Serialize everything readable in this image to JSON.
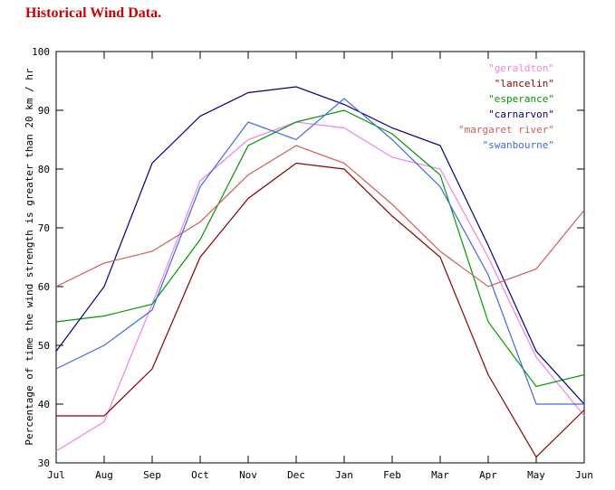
{
  "title": "Historical Wind Data.",
  "title_color": "#cc0000",
  "chart_data": {
    "type": "line",
    "title": "Historical Wind Data.",
    "xlabel": "",
    "ylabel": "Percentage of time the wind strength is greater than 20 km / hr",
    "ylim": [
      30,
      100
    ],
    "yticks": [
      30,
      40,
      50,
      60,
      70,
      80,
      90,
      100
    ],
    "grid": false,
    "legend_position": "top-right-inside",
    "categories": [
      "Jul",
      "Aug",
      "Sep",
      "Oct",
      "Nov",
      "Dec",
      "Jan",
      "Feb",
      "Mar",
      "Apr",
      "May",
      "Jun"
    ],
    "series": [
      {
        "name": "geraldton",
        "label": "\"geraldton\"",
        "color": "#ee82ee",
        "values": [
          32,
          37,
          57,
          78,
          85,
          88,
          87,
          82,
          80,
          65,
          48,
          38
        ]
      },
      {
        "name": "lancelin",
        "label": "\"lancelin\"",
        "color": "#8b0000",
        "values": [
          38,
          38,
          46,
          65,
          75,
          81,
          80,
          72,
          65,
          45,
          31,
          39
        ]
      },
      {
        "name": "esperance",
        "label": "\"esperance\"",
        "color": "#009900",
        "values": [
          54,
          55,
          57,
          68,
          84,
          88,
          90,
          86,
          79,
          54,
          43,
          45
        ]
      },
      {
        "name": "carnarvon",
        "label": "\"carnarvon\"",
        "color": "#000080",
        "values": [
          49,
          60,
          81,
          89,
          93,
          94,
          91,
          87,
          84,
          67,
          49,
          40
        ]
      },
      {
        "name": "margaret river",
        "label": "\"margaret river\"",
        "color": "#d05c5c",
        "values": [
          60,
          64,
          66,
          71,
          79,
          84,
          81,
          74,
          66,
          60,
          63,
          73
        ]
      },
      {
        "name": "swanbourne",
        "label": "\"swanbourne\"",
        "color": "#4169e1",
        "values": [
          46,
          50,
          56,
          77,
          88,
          85,
          92,
          85,
          77,
          62,
          40,
          40
        ]
      }
    ]
  }
}
